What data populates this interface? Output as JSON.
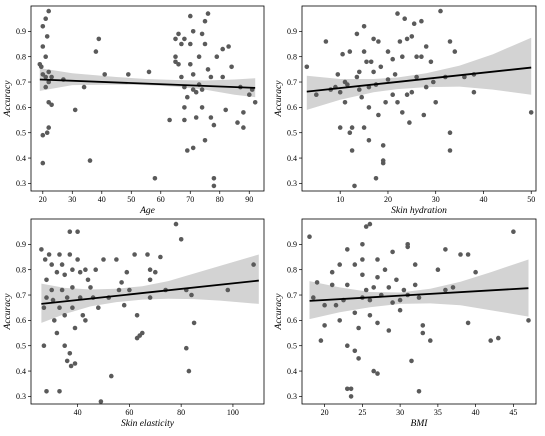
{
  "colors": {
    "points": "#5a5a5a",
    "ci_band": "#d3d3d3",
    "fit_line": "#000000"
  },
  "chart_data": [
    {
      "type": "scatter",
      "xlabel": "Age",
      "ylabel": "Accuracy",
      "xlim": [
        16,
        95
      ],
      "ylim": [
        0.27,
        1.0
      ],
      "xticks": [
        20,
        30,
        40,
        50,
        60,
        70,
        80,
        90
      ],
      "yticks": [
        0.3,
        0.4,
        0.5,
        0.6,
        0.7,
        0.8,
        0.9
      ],
      "fit_line": [
        [
          19,
          0.71
        ],
        [
          92,
          0.677
        ]
      ],
      "ci_band": {
        "x": [
          19,
          30,
          45,
          55,
          65,
          75,
          85,
          92
        ],
        "lower": [
          0.665,
          0.688,
          0.69,
          0.688,
          0.682,
          0.67,
          0.65,
          0.64
        ],
        "upper": [
          0.755,
          0.735,
          0.72,
          0.712,
          0.708,
          0.706,
          0.71,
          0.715
        ]
      },
      "points": [
        [
          19,
          0.77
        ],
        [
          19.5,
          0.76
        ],
        [
          20,
          0.73
        ],
        [
          20,
          0.92
        ],
        [
          20,
          0.84
        ],
        [
          20,
          0.38
        ],
        [
          20,
          0.49
        ],
        [
          21,
          0.8
        ],
        [
          21,
          0.95
        ],
        [
          21.5,
          0.88
        ],
        [
          22,
          0.98
        ],
        [
          21,
          0.72
        ],
        [
          22,
          0.7
        ],
        [
          22,
          0.74
        ],
        [
          21,
          0.68
        ],
        [
          22,
          0.62
        ],
        [
          23,
          0.61
        ],
        [
          22,
          0.52
        ],
        [
          21.5,
          0.5
        ],
        [
          23,
          0.72
        ],
        [
          27,
          0.71
        ],
        [
          31,
          0.59
        ],
        [
          34,
          0.68
        ],
        [
          36,
          0.39
        ],
        [
          38,
          0.82
        ],
        [
          39,
          0.87
        ],
        [
          41,
          0.73
        ],
        [
          49,
          0.73
        ],
        [
          56,
          0.74
        ],
        [
          58,
          0.32
        ],
        [
          63,
          0.55
        ],
        [
          65,
          0.87
        ],
        [
          65,
          0.8
        ],
        [
          65,
          0.78
        ],
        [
          66,
          0.89
        ],
        [
          66,
          0.77
        ],
        [
          67,
          0.85
        ],
        [
          67,
          0.72
        ],
        [
          68,
          0.87
        ],
        [
          68,
          0.68
        ],
        [
          68,
          0.6
        ],
        [
          68,
          0.55
        ],
        [
          69,
          0.64
        ],
        [
          69,
          0.43
        ],
        [
          70,
          0.96
        ],
        [
          70,
          0.85
        ],
        [
          70,
          0.77
        ],
        [
          71,
          0.73
        ],
        [
          71,
          0.67
        ],
        [
          71,
          0.44
        ],
        [
          71,
          0.9
        ],
        [
          72,
          0.66
        ],
        [
          72,
          0.56
        ],
        [
          73,
          0.8
        ],
        [
          73,
          0.69
        ],
        [
          74,
          0.89
        ],
        [
          74,
          0.67
        ],
        [
          74,
          0.6
        ],
        [
          75,
          0.85
        ],
        [
          75,
          0.47
        ],
        [
          75,
          0.94
        ],
        [
          76,
          0.97
        ],
        [
          76,
          0.75
        ],
        [
          77,
          0.72
        ],
        [
          77,
          0.56
        ],
        [
          78,
          0.53
        ],
        [
          78,
          0.32
        ],
        [
          78,
          0.29
        ],
        [
          79,
          0.8
        ],
        [
          81,
          0.83
        ],
        [
          81,
          0.72
        ],
        [
          82,
          0.59
        ],
        [
          83,
          0.84
        ],
        [
          84,
          0.76
        ],
        [
          86,
          0.54
        ],
        [
          87,
          0.68
        ],
        [
          88,
          0.58
        ],
        [
          88,
          0.52
        ],
        [
          90,
          0.65
        ],
        [
          91,
          0.67
        ],
        [
          92,
          0.62
        ]
      ]
    },
    {
      "type": "scatter",
      "xlabel": "Skin hydration",
      "ylabel": "Accuracy",
      "xlim": [
        2,
        51
      ],
      "ylim": [
        0.27,
        1.0
      ],
      "xticks": [
        10,
        20,
        30,
        40,
        50
      ],
      "yticks": [
        0.3,
        0.4,
        0.5,
        0.6,
        0.7,
        0.8,
        0.9
      ],
      "fit_line": [
        [
          3,
          0.662
        ],
        [
          50,
          0.757
        ]
      ],
      "ci_band": {
        "x": [
          3,
          10,
          17,
          22,
          28,
          35,
          42,
          50
        ],
        "lower": [
          0.59,
          0.63,
          0.66,
          0.672,
          0.68,
          0.682,
          0.67,
          0.65
        ],
        "upper": [
          0.725,
          0.712,
          0.712,
          0.718,
          0.735,
          0.765,
          0.81,
          0.875
        ]
      },
      "points": [
        [
          3,
          0.76
        ],
        [
          5,
          0.65
        ],
        [
          7,
          0.86
        ],
        [
          8,
          0.67
        ],
        [
          9,
          0.68
        ],
        [
          9.5,
          0.73
        ],
        [
          10,
          0.66
        ],
        [
          10,
          0.52
        ],
        [
          10.5,
          0.81
        ],
        [
          11,
          0.7
        ],
        [
          11,
          0.62
        ],
        [
          11.5,
          0.69
        ],
        [
          12,
          0.82
        ],
        [
          12,
          0.5
        ],
        [
          12.5,
          0.43
        ],
        [
          12.5,
          0.52
        ],
        [
          13,
          0.29
        ],
        [
          13.5,
          0.89
        ],
        [
          13.5,
          0.72
        ],
        [
          14,
          0.74
        ],
        [
          14,
          0.67
        ],
        [
          14.5,
          0.64
        ],
        [
          15,
          0.92
        ],
        [
          15,
          0.82
        ],
        [
          15,
          0.52
        ],
        [
          15.5,
          0.78
        ],
        [
          16,
          0.68
        ],
        [
          16,
          0.6
        ],
        [
          16,
          0.47
        ],
        [
          16.5,
          0.78
        ],
        [
          17,
          0.87
        ],
        [
          17,
          0.74
        ],
        [
          17.5,
          0.69
        ],
        [
          17.5,
          0.32
        ],
        [
          18,
          0.86
        ],
        [
          18,
          0.57
        ],
        [
          18.5,
          0.76
        ],
        [
          19,
          0.45
        ],
        [
          19,
          0.39
        ],
        [
          19,
          0.38
        ],
        [
          19.5,
          0.62
        ],
        [
          20,
          0.82
        ],
        [
          20,
          0.71
        ],
        [
          21,
          0.79
        ],
        [
          21,
          0.65
        ],
        [
          21.5,
          0.73
        ],
        [
          22,
          0.97
        ],
        [
          22,
          0.62
        ],
        [
          22.5,
          0.86
        ],
        [
          23,
          0.8
        ],
        [
          23,
          0.58
        ],
        [
          23.5,
          0.95
        ],
        [
          24,
          0.87
        ],
        [
          24,
          0.65
        ],
        [
          24.5,
          0.54
        ],
        [
          25,
          0.88
        ],
        [
          25,
          0.66
        ],
        [
          25.5,
          0.93
        ],
        [
          26,
          0.8
        ],
        [
          26,
          0.72
        ],
        [
          27,
          0.94
        ],
        [
          27,
          0.8
        ],
        [
          27.5,
          0.57
        ],
        [
          28,
          0.84
        ],
        [
          28,
          0.68
        ],
        [
          29,
          0.78
        ],
        [
          29.5,
          0.7
        ],
        [
          30,
          0.62
        ],
        [
          31,
          0.98
        ],
        [
          32,
          0.72
        ],
        [
          33,
          0.86
        ],
        [
          33,
          0.5
        ],
        [
          33,
          0.43
        ],
        [
          34,
          0.82
        ],
        [
          36,
          0.72
        ],
        [
          38,
          0.73
        ],
        [
          38,
          0.66
        ],
        [
          50,
          0.58
        ]
      ]
    },
    {
      "type": "scatter",
      "xlabel": "Skin elasticity",
      "ylabel": "Accuracy",
      "xlim": [
        22,
        112
      ],
      "ylim": [
        0.27,
        1.0
      ],
      "xticks": [
        40,
        60,
        80,
        100
      ],
      "yticks": [
        0.3,
        0.4,
        0.5,
        0.6,
        0.7,
        0.8,
        0.9
      ],
      "fit_line": [
        [
          26,
          0.665
        ],
        [
          110,
          0.757
        ]
      ],
      "ci_band": {
        "x": [
          26,
          35,
          45,
          55,
          65,
          75,
          85,
          95,
          110
        ],
        "lower": [
          0.59,
          0.625,
          0.655,
          0.672,
          0.682,
          0.685,
          0.684,
          0.678,
          0.665
        ],
        "upper": [
          0.745,
          0.728,
          0.722,
          0.725,
          0.735,
          0.755,
          0.785,
          0.815,
          0.86
        ]
      },
      "points": [
        [
          26,
          0.88
        ],
        [
          27,
          0.65
        ],
        [
          27,
          0.5
        ],
        [
          27.5,
          0.84
        ],
        [
          28,
          0.76
        ],
        [
          28,
          0.69
        ],
        [
          28,
          0.32
        ],
        [
          29,
          0.86
        ],
        [
          30,
          0.82
        ],
        [
          30,
          0.72
        ],
        [
          30.5,
          0.68
        ],
        [
          31,
          0.6
        ],
        [
          32,
          0.79
        ],
        [
          32,
          0.55
        ],
        [
          33,
          0.86
        ],
        [
          33,
          0.65
        ],
        [
          33,
          0.32
        ],
        [
          34,
          0.82
        ],
        [
          34,
          0.72
        ],
        [
          35,
          0.78
        ],
        [
          35,
          0.62
        ],
        [
          35,
          0.5
        ],
        [
          36,
          0.69
        ],
        [
          36,
          0.44
        ],
        [
          37,
          0.95
        ],
        [
          37,
          0.86
        ],
        [
          37,
          0.47
        ],
        [
          37.5,
          0.42
        ],
        [
          38,
          0.8
        ],
        [
          38,
          0.73
        ],
        [
          38,
          0.65
        ],
        [
          39,
          0.57
        ],
        [
          39,
          0.43
        ],
        [
          40,
          0.95
        ],
        [
          40,
          0.84
        ],
        [
          41,
          0.79
        ],
        [
          41,
          0.69
        ],
        [
          42,
          0.62
        ],
        [
          43,
          0.8
        ],
        [
          43,
          0.6
        ],
        [
          44,
          0.76
        ],
        [
          45,
          0.73
        ],
        [
          46,
          0.69
        ],
        [
          47,
          0.8
        ],
        [
          48,
          0.65
        ],
        [
          49,
          0.28
        ],
        [
          50,
          0.84
        ],
        [
          52,
          0.69
        ],
        [
          53,
          0.38
        ],
        [
          55,
          0.84
        ],
        [
          56,
          0.72
        ],
        [
          57,
          0.75
        ],
        [
          58,
          0.66
        ],
        [
          59,
          0.79
        ],
        [
          60,
          0.72
        ],
        [
          62,
          0.86
        ],
        [
          63,
          0.53
        ],
        [
          63,
          0.62
        ],
        [
          64,
          0.54
        ],
        [
          65,
          0.55
        ],
        [
          67,
          0.86
        ],
        [
          68,
          0.8
        ],
        [
          68,
          0.76
        ],
        [
          68,
          0.69
        ],
        [
          70,
          0.79
        ],
        [
          72,
          0.85
        ],
        [
          74,
          0.72
        ],
        [
          78,
          0.98
        ],
        [
          80,
          0.92
        ],
        [
          82,
          0.72
        ],
        [
          82,
          0.49
        ],
        [
          83,
          0.4
        ],
        [
          84,
          0.7
        ],
        [
          85,
          0.59
        ],
        [
          98,
          0.72
        ],
        [
          108,
          0.82
        ]
      ]
    },
    {
      "type": "scatter",
      "xlabel": "BMI",
      "ylabel": "Accuracy",
      "xlim": [
        17,
        48
      ],
      "ylim": [
        0.27,
        1.0
      ],
      "xticks": [
        20,
        25,
        30,
        35,
        40,
        45
      ],
      "yticks": [
        0.3,
        0.4,
        0.5,
        0.6,
        0.7,
        0.8,
        0.9
      ],
      "fit_line": [
        [
          18,
          0.677
        ],
        [
          47,
          0.727
        ]
      ],
      "ci_band": {
        "x": [
          18,
          22,
          26,
          30,
          34,
          38,
          42,
          47
        ],
        "lower": [
          0.605,
          0.632,
          0.652,
          0.665,
          0.667,
          0.66,
          0.64,
          0.615
        ],
        "upper": [
          0.755,
          0.73,
          0.712,
          0.71,
          0.725,
          0.752,
          0.79,
          0.84
        ]
      },
      "points": [
        [
          18,
          0.93
        ],
        [
          18.5,
          0.69
        ],
        [
          19,
          0.75
        ],
        [
          19.5,
          0.52
        ],
        [
          20,
          0.66
        ],
        [
          20,
          0.58
        ],
        [
          21,
          0.79
        ],
        [
          21,
          0.74
        ],
        [
          21.5,
          0.66
        ],
        [
          22,
          0.82
        ],
        [
          22,
          0.6
        ],
        [
          22.5,
          0.68
        ],
        [
          23,
          0.88
        ],
        [
          23,
          0.74
        ],
        [
          23,
          0.5
        ],
        [
          23,
          0.33
        ],
        [
          23.5,
          0.3
        ],
        [
          23.5,
          0.33
        ],
        [
          24,
          0.82
        ],
        [
          24,
          0.63
        ],
        [
          24,
          0.48
        ],
        [
          24.5,
          0.57
        ],
        [
          24.5,
          0.45
        ],
        [
          25,
          0.9
        ],
        [
          25,
          0.78
        ],
        [
          25,
          0.69
        ],
        [
          25,
          0.84
        ],
        [
          25.5,
          0.97
        ],
        [
          25.5,
          0.72
        ],
        [
          26,
          0.98
        ],
        [
          26,
          0.62
        ],
        [
          26,
          0.68
        ],
        [
          26.5,
          0.4
        ],
        [
          26.5,
          0.73
        ],
        [
          27,
          0.84
        ],
        [
          27,
          0.77
        ],
        [
          27,
          0.59
        ],
        [
          27,
          0.39
        ],
        [
          27.5,
          0.7
        ],
        [
          28,
          0.8
        ],
        [
          28.5,
          0.73
        ],
        [
          28.5,
          0.56
        ],
        [
          29,
          0.87
        ],
        [
          29,
          0.67
        ],
        [
          29.5,
          0.76
        ],
        [
          30,
          0.68
        ],
        [
          30,
          0.64
        ],
        [
          30.5,
          0.72
        ],
        [
          31,
          0.89
        ],
        [
          31,
          0.7
        ],
        [
          31,
          0.9
        ],
        [
          31.5,
          0.44
        ],
        [
          32,
          0.82
        ],
        [
          32,
          0.74
        ],
        [
          32.5,
          0.69
        ],
        [
          32.5,
          0.32
        ],
        [
          33,
          0.58
        ],
        [
          33,
          0.55
        ],
        [
          34,
          0.52
        ],
        [
          35,
          0.8
        ],
        [
          36,
          0.72
        ],
        [
          36,
          0.88
        ],
        [
          37,
          0.73
        ],
        [
          38,
          0.86
        ],
        [
          39,
          0.86
        ],
        [
          39,
          0.59
        ],
        [
          40,
          0.79
        ],
        [
          42,
          0.52
        ],
        [
          43,
          0.53
        ],
        [
          45,
          0.95
        ],
        [
          47,
          0.6
        ]
      ]
    }
  ]
}
